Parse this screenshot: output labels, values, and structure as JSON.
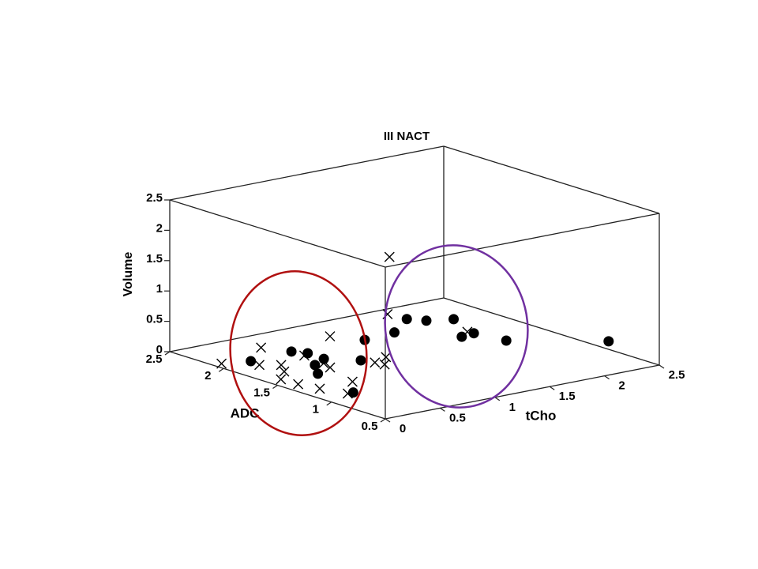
{
  "chart_data": {
    "type": "scatter3d",
    "title": "III NACT",
    "xlabel": "tCho",
    "ylabel": "ADC",
    "zlabel": "Volume",
    "xlim": [
      0,
      2.5
    ],
    "ylim": [
      0.5,
      2.5
    ],
    "zlim": [
      0,
      2.5
    ],
    "xticks": [
      0,
      0.5,
      1,
      1.5,
      2,
      2.5
    ],
    "yticks": [
      0.5,
      1,
      1.5,
      2,
      2.5
    ],
    "zticks": [
      0,
      0.5,
      1,
      1.5,
      2,
      2.5
    ],
    "series": [
      {
        "marker": "circle",
        "color": "#000000",
        "x": [
          0.12,
          0.52,
          0.58,
          0.57,
          0.41,
          0.27,
          0.13,
          0.75,
          1.14,
          1.44,
          1.75,
          1.83,
          2.01,
          1.74,
          1.87,
          1.92,
          2.48
        ],
        "y": [
          1.87,
          1.9,
          1.81,
          1.65,
          1.57,
          1.4,
          0.93,
          1.49,
          1.85,
          1.88,
          2.08,
          1.98,
          1.91,
          1.56,
          1.58,
          1.33,
          0.95
        ],
        "z": [
          0.15,
          0.15,
          0.15,
          0.15,
          0.15,
          0.15,
          0.15,
          0.15,
          0.15,
          0.15,
          0.15,
          0.15,
          0.15,
          0.15,
          0.15,
          0.15,
          0.15
        ]
      },
      {
        "marker": "cross",
        "color": "#000000",
        "x": [
          0.5,
          0.02,
          0.42,
          0.1,
          0.22,
          0.12,
          0.07,
          0.08,
          0.52,
          0.49,
          1.01,
          0.45,
          0.12,
          0.32,
          0.08,
          0.79,
          0.95,
          0.81,
          1.24,
          1.86
        ],
        "y": [
          0.97,
          2.04,
          2.08,
          1.77,
          1.69,
          1.56,
          1.54,
          1.39,
          1.78,
          1.57,
          2.04,
          1.47,
          1.23,
          1.13,
          0.93,
          1.4,
          1.46,
          1.33,
          1.74,
          1.63
        ],
        "z": [
          2.23,
          0.05,
          0.15,
          0.15,
          0.15,
          0.15,
          0.05,
          0.05,
          0.15,
          0.15,
          0.15,
          0.15,
          0.05,
          0.15,
          0.15,
          0.15,
          0.15,
          0.15,
          0.6,
          0.15
        ]
      }
    ]
  }
}
